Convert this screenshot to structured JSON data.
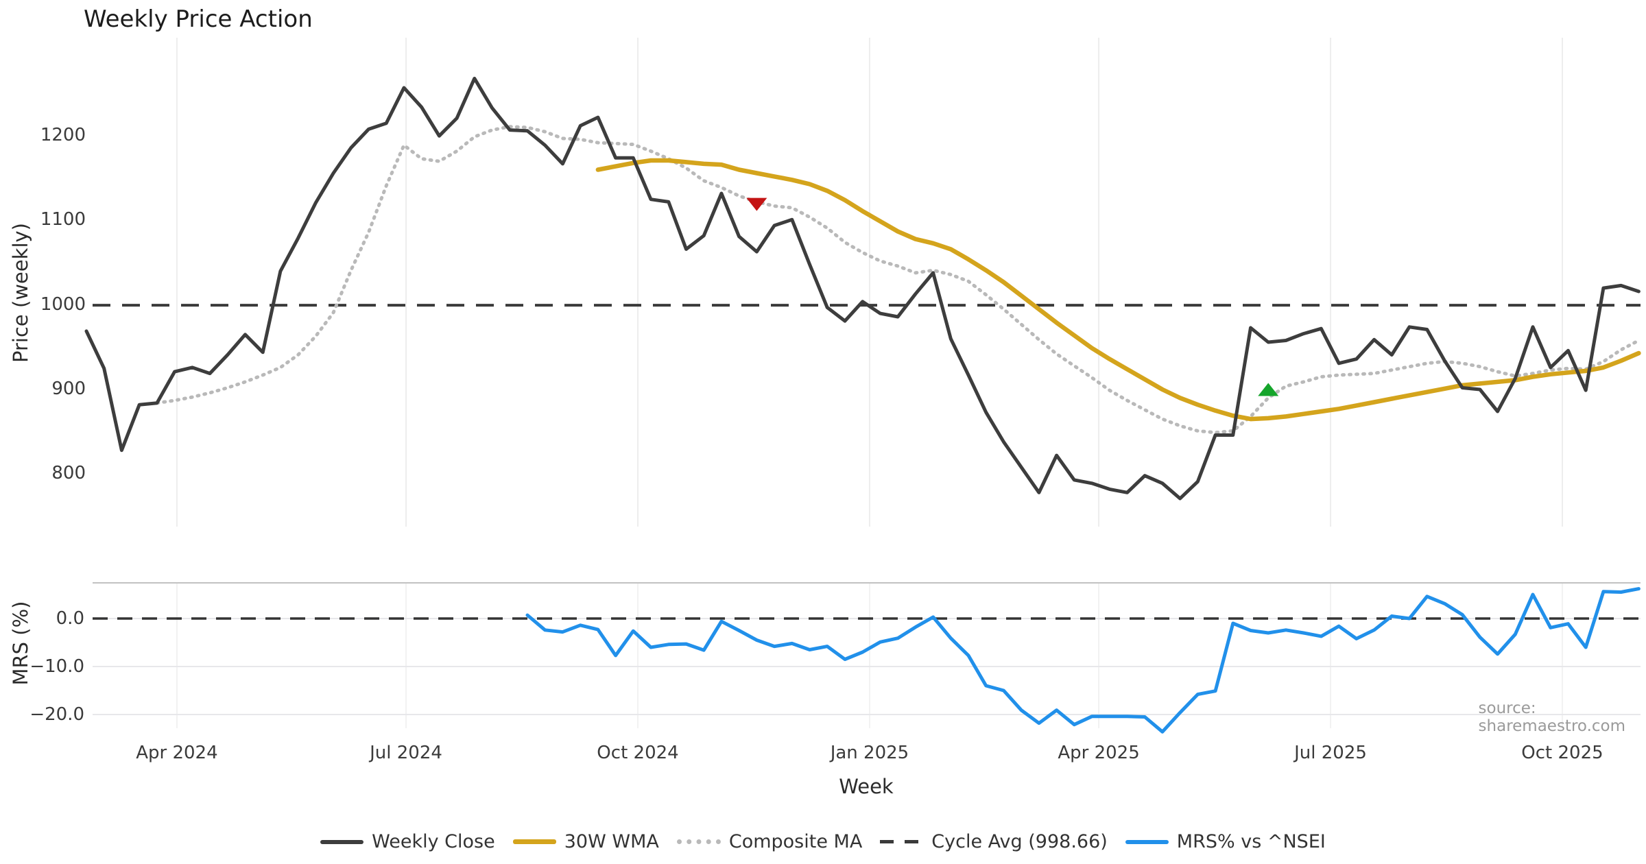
{
  "chart_data": {
    "type": "line",
    "title": "Weekly Price Action",
    "xlabel": "Week",
    "ylabel_top": "Price (weekly)",
    "ylabel_bottom": "MRS (%)",
    "source": "source: sharemaestro.com",
    "cycle_avg": 998.66,
    "grid": "light vertical gridlines on both panels, horizontal gridlines on bottom panel",
    "legend_position": "bottom center",
    "panels": [
      {
        "id": "price",
        "ylim": [
          760,
          1290
        ],
        "y_ticks": [
          {
            "label": "800",
            "value": 800
          },
          {
            "label": "900",
            "value": 900
          },
          {
            "label": "1000",
            "value": 1000
          },
          {
            "label": "1100",
            "value": 1100
          },
          {
            "label": "1200",
            "value": 1200
          }
        ]
      },
      {
        "id": "mrs",
        "ylim": [
          -26,
          7.5
        ],
        "y_ticks": [
          {
            "label": "0.0",
            "value": 0
          },
          {
            "label": "−10.0",
            "value": -10
          },
          {
            "label": "−20.0",
            "value": -20
          }
        ]
      }
    ],
    "x_ticks": [
      {
        "label": "Apr 2024",
        "week": 5.13
      },
      {
        "label": "Jul 2024",
        "week": 18.12
      },
      {
        "label": "Oct 2024",
        "week": 31.26
      },
      {
        "label": "Jan 2025",
        "week": 44.4
      },
      {
        "label": "Apr 2025",
        "week": 57.39
      },
      {
        "label": "Jul 2025",
        "week": 70.53
      },
      {
        "label": "Oct 2025",
        "week": 83.67
      }
    ],
    "series": [
      {
        "name": "Weekly Close",
        "panel": "price",
        "color": "#3d3d3d",
        "style": "solid",
        "start_week": 0,
        "values": [
          968,
          924,
          827,
          881,
          883,
          920,
          925,
          918,
          940,
          964,
          943,
          1039,
          1078,
          1120,
          1155,
          1185,
          1207,
          1214,
          1256,
          1233,
          1199,
          1220,
          1267,
          1232,
          1206,
          1205,
          1188,
          1166,
          1211,
          1221,
          1173,
          1173,
          1124,
          1121,
          1065,
          1081,
          1131,
          1080,
          1062,
          1093,
          1100,
          1047,
          996,
          980,
          1003,
          989,
          985,
          1012,
          1037,
          959,
          916,
          872,
          837,
          807,
          777,
          821,
          792,
          788,
          781,
          777,
          797,
          788,
          770,
          790,
          845,
          845,
          972,
          955,
          957,
          965,
          971,
          930,
          935,
          958,
          940,
          973,
          970,
          933,
          901,
          899,
          873,
          912,
          973,
          925,
          945,
          898,
          1019,
          1022,
          1015
        ]
      },
      {
        "name": "30W WMA",
        "panel": "price",
        "color": "#d4a41c",
        "style": "solid",
        "start_week": 29,
        "values": [
          1159,
          1163,
          1167,
          1170,
          1170,
          1168,
          1166,
          1165,
          1159,
          1155,
          1151,
          1147,
          1142,
          1134,
          1123,
          1110,
          1098,
          1086,
          1077,
          1072,
          1065,
          1053,
          1040,
          1026,
          1010,
          994,
          978,
          963,
          948,
          935,
          923,
          911,
          899,
          889,
          881,
          874,
          868,
          864,
          865,
          867,
          870,
          873,
          876,
          880,
          884,
          888,
          892,
          896,
          900,
          904,
          906,
          908,
          910,
          914,
          917,
          919,
          921,
          925,
          933,
          942
        ]
      },
      {
        "name": "Composite MA",
        "panel": "price",
        "color": "#b9b9b9",
        "style": "dotted",
        "start_week": 4,
        "values": [
          883,
          886,
          890,
          895,
          901,
          908,
          916,
          925,
          940,
          962,
          990,
          1040,
          1085,
          1140,
          1188,
          1172,
          1169,
          1181,
          1198,
          1206,
          1210,
          1209,
          1204,
          1196,
          1195,
          1191,
          1190,
          1189,
          1181,
          1172,
          1161,
          1146,
          1138,
          1128,
          1121,
          1116,
          1114,
          1103,
          1090,
          1073,
          1061,
          1051,
          1045,
          1037,
          1040,
          1035,
          1027,
          1011,
          994,
          976,
          958,
          941,
          927,
          913,
          898,
          886,
          875,
          864,
          856,
          850,
          848,
          850,
          867,
          889,
          903,
          908,
          914,
          916,
          917,
          918,
          922,
          926,
          930,
          932,
          930,
          926,
          920,
          915,
          918,
          922,
          924,
          923,
          932,
          946,
          957
        ]
      },
      {
        "name": "Cycle Avg (998.66)",
        "panel": "price",
        "color": "#3a3a3a",
        "style": "dashed",
        "constant": 998.66
      },
      {
        "name": "MRS% vs ^NSEI",
        "panel": "mrs",
        "color": "#2190ea",
        "style": "solid",
        "start_week": 25,
        "values": [
          0.7,
          -2.4,
          -2.8,
          -1.4,
          -2.3,
          -7.7,
          -2.6,
          -6.0,
          -5.4,
          -5.3,
          -6.6,
          -0.6,
          -2.5,
          -4.5,
          -5.8,
          -5.2,
          -6.5,
          -5.8,
          -8.5,
          -7.0,
          -4.9,
          -4.1,
          -1.8,
          0.3,
          -4.1,
          -7.7,
          -14.0,
          -15.0,
          -19.1,
          -21.8,
          -19.1,
          -22.1,
          -20.4,
          -20.4,
          -20.4,
          -20.5,
          -23.6,
          -19.6,
          -15.8,
          -15.1,
          -1.0,
          -2.5,
          -3.0,
          -2.4,
          -3.0,
          -3.7,
          -1.6,
          -4.2,
          -2.4,
          0.5,
          0.0,
          4.6,
          3.1,
          0.8,
          -3.9,
          -7.4,
          -3.3,
          5.0,
          -1.9,
          -1.1,
          -6.0,
          5.6,
          5.5,
          6.2
        ]
      }
    ],
    "markers": [
      {
        "name": "sell-signal",
        "shape": "triangle-down",
        "color": "#c41414",
        "week": 38,
        "price": 1118
      },
      {
        "name": "buy-signal",
        "shape": "triangle-up",
        "color": "#15a52b",
        "week": 67,
        "price": 899
      }
    ]
  }
}
